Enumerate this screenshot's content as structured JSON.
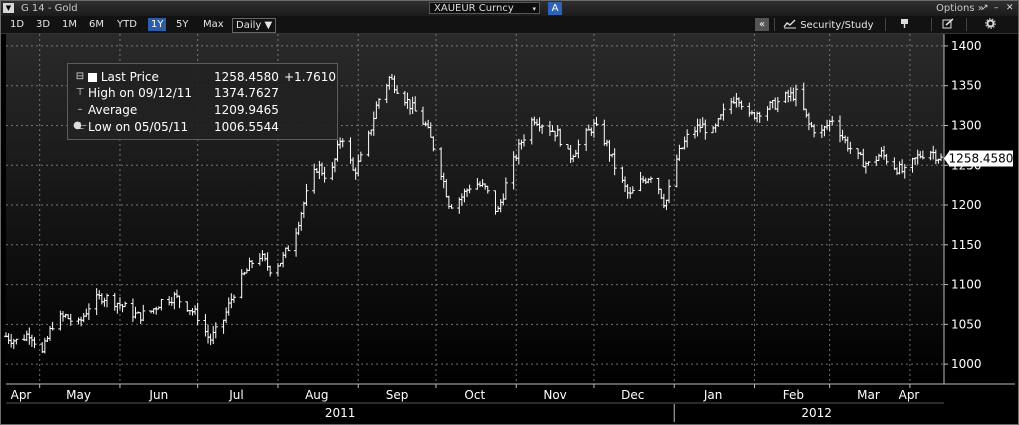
{
  "window": {
    "title": "G 14 - Gold",
    "ticker": "XAUEUR Curncy",
    "ticker_dropdown_symbol": "▾",
    "a_button": "A",
    "options_label": "Options »",
    "window_controls": [
      "↗",
      "–",
      "✕"
    ]
  },
  "toolbar": {
    "ranges": [
      "1D",
      "3D",
      "1M",
      "6M",
      "YTD",
      "1Y",
      "5Y",
      "Max"
    ],
    "selected_range": "1Y",
    "frequency": "Daily ▼",
    "collapse_symbol": "«",
    "security_study_label": "Security/Study",
    "icons": [
      "chart-settings-icon",
      "pin-icon",
      "edit-icon",
      "gear-icon"
    ]
  },
  "legend": {
    "last_price_label": "Last Price",
    "last_price_value": "1258.4580",
    "last_price_change": "+1.7610",
    "high_label": "High on 09/12/11",
    "high_value": "1374.7627",
    "average_label": "Average",
    "average_value": "1209.9465",
    "low_label": "Low on 05/05/11",
    "low_value": "1006.5544"
  },
  "chart_data": {
    "type": "ohlc",
    "title": "",
    "xlabel": "",
    "ylabel": "",
    "ylim": [
      975,
      1415
    ],
    "y_ticks": [
      1000,
      1050,
      1100,
      1150,
      1200,
      1250,
      1300,
      1350,
      1400
    ],
    "x_tick_labels": [
      "Apr",
      "May",
      "Jun",
      "Jul",
      "Aug",
      "Sep",
      "Oct",
      "Nov",
      "Dec",
      "Jan",
      "Feb",
      "Mar",
      "Apr"
    ],
    "year_labels": [
      "2011",
      "2012"
    ],
    "grid": true,
    "last_value_label": "1258.4580",
    "last_value": 1258.458,
    "colors": {
      "background_top": "#2a2a2a",
      "background_bottom": "#000000",
      "bars": "#ffffff",
      "grid": "#8a8a8a",
      "axis_text": "#ffffff",
      "last_value_box": "#ffffff"
    },
    "series": [
      {
        "frequency": "weekly_approx",
        "x_start": "2011-04-18",
        "x_end": "2012-04-13",
        "close": [
          1035,
          1028,
          1040,
          1012,
          1055,
          1060,
          1048,
          1075,
          1085,
          1080,
          1070,
          1060,
          1065,
          1080,
          1085,
          1075,
          1060,
          1030,
          1050,
          1090,
          1115,
          1140,
          1120,
          1130,
          1160,
          1210,
          1250,
          1230,
          1290,
          1240,
          1270,
          1330,
          1360,
          1340,
          1320,
          1300,
          1260,
          1200,
          1210,
          1230,
          1220,
          1190,
          1240,
          1280,
          1310,
          1300,
          1290,
          1260,
          1280,
          1300,
          1280,
          1240,
          1210,
          1230,
          1240,
          1200,
          1260,
          1290,
          1300,
          1290,
          1320,
          1340,
          1310,
          1320,
          1325,
          1335,
          1340,
          1300,
          1290,
          1310,
          1280,
          1260,
          1250,
          1265,
          1250,
          1240,
          1260,
          1270,
          1258
        ]
      }
    ]
  }
}
